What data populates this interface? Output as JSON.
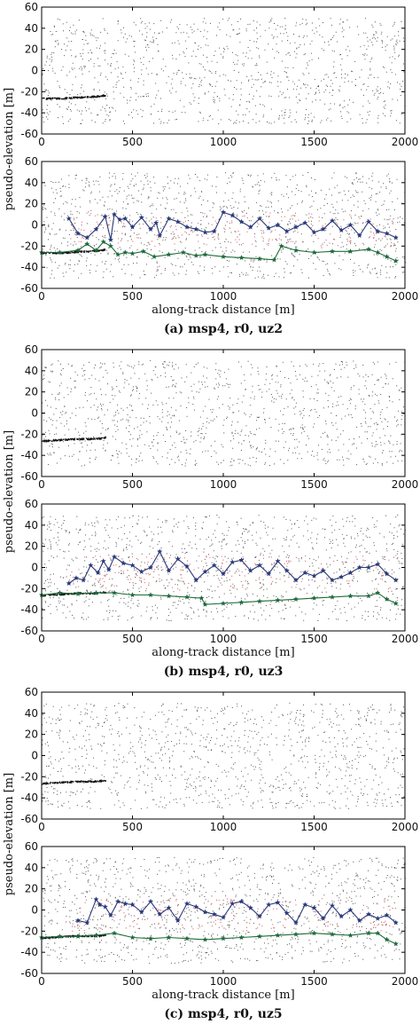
{
  "chart_data": [
    {
      "type": "scatter",
      "caption": "(a) msp4, r0, uz2",
      "ylabel": "pseudo-elevation [m]",
      "xlabel": "along-track distance [m]",
      "xlim": [
        0,
        2000
      ],
      "ylim": [
        -60,
        60
      ],
      "xticks": [
        "0",
        "500",
        "1000",
        "1500",
        "2000"
      ],
      "yticks": [
        "60",
        "40",
        "20",
        "0",
        "-20",
        "-40",
        "-60"
      ],
      "noise_band": [
        -50,
        50
      ],
      "top_panel": {
        "surface": {
          "x": [
            0,
            100,
            200,
            300,
            350
          ],
          "y": [
            -26,
            -26,
            -25,
            -24,
            -23
          ]
        }
      },
      "bottom_panel": {
        "series": [
          {
            "color": "#2a3a7a",
            "marker": "star",
            "x": [
              150,
              200,
              250,
              300,
              350,
              380,
              400,
              430,
              460,
              500,
              550,
              600,
              630,
              650,
              700,
              750,
              800,
              850,
              900,
              950,
              1000,
              1050,
              1100,
              1150,
              1200,
              1250,
              1300,
              1350,
              1400,
              1450,
              1500,
              1550,
              1600,
              1650,
              1700,
              1750,
              1800,
              1850,
              1900,
              1950
            ],
            "y": [
              6,
              -8,
              -12,
              -4,
              8,
              -14,
              10,
              5,
              6,
              -2,
              7,
              -4,
              2,
              -10,
              6,
              3,
              -2,
              -4,
              -7,
              -6,
              12,
              9,
              3,
              -2,
              6,
              -3,
              0,
              -6,
              -2,
              2,
              -7,
              -4,
              4,
              -5,
              0,
              -10,
              3,
              -6,
              -8,
              -12
            ]
          },
          {
            "color": "#1e6b3c",
            "marker": "star",
            "x": [
              0,
              100,
              200,
              250,
              300,
              340,
              380,
              420,
              460,
              500,
              560,
              620,
              700,
              780,
              850,
              900,
              1000,
              1100,
              1200,
              1280,
              1320,
              1400,
              1500,
              1600,
              1700,
              1800,
              1850,
              1900,
              1950
            ],
            "y": [
              -26,
              -26,
              -24,
              -18,
              -24,
              -16,
              -20,
              -28,
              -26,
              -27,
              -25,
              -30,
              -28,
              -26,
              -29,
              -28,
              -30,
              -31,
              -32,
              -33,
              -20,
              -24,
              -26,
              -25,
              -25,
              -23,
              -26,
              -30,
              -34
            ]
          }
        ]
      }
    },
    {
      "type": "scatter",
      "caption": "(b) msp4, r0, uz3",
      "ylabel": "pseudo-elevation [m]",
      "xlabel": "along-track distance [m]",
      "xlim": [
        0,
        2000
      ],
      "ylim": [
        -60,
        60
      ],
      "xticks": [
        "0",
        "500",
        "1000",
        "1500",
        "2000"
      ],
      "yticks": [
        "60",
        "40",
        "20",
        "0",
        "-20",
        "-40",
        "-60"
      ],
      "noise_band": [
        -50,
        50
      ],
      "top_panel": {
        "surface": {
          "x": [
            0,
            100,
            200,
            300,
            350
          ],
          "y": [
            -26,
            -25,
            -24,
            -24,
            -23
          ]
        }
      },
      "bottom_panel": {
        "series": [
          {
            "color": "#2a3a7a",
            "marker": "star",
            "x": [
              150,
              190,
              230,
              270,
              310,
              340,
              370,
              400,
              450,
              500,
              550,
              600,
              650,
              700,
              750,
              800,
              850,
              900,
              950,
              1000,
              1050,
              1100,
              1150,
              1200,
              1250,
              1300,
              1350,
              1400,
              1450,
              1500,
              1550,
              1600,
              1650,
              1700,
              1750,
              1800,
              1850,
              1900,
              1950
            ],
            "y": [
              -15,
              -10,
              -12,
              2,
              -5,
              6,
              -2,
              10,
              4,
              2,
              -4,
              0,
              15,
              -3,
              8,
              1,
              -12,
              -4,
              2,
              -6,
              5,
              7,
              -3,
              2,
              -6,
              6,
              -3,
              -12,
              -5,
              -8,
              -3,
              -12,
              -9,
              -5,
              0,
              0,
              3,
              -6,
              -12
            ]
          },
          {
            "color": "#1e6b3c",
            "marker": "star",
            "x": [
              0,
              100,
              200,
              300,
              400,
              500,
              600,
              700,
              800,
              880,
              900,
              1000,
              1100,
              1200,
              1300,
              1400,
              1500,
              1600,
              1700,
              1800,
              1850,
              1900,
              1950
            ],
            "y": [
              -26,
              -24,
              -25,
              -24,
              -24,
              -26,
              -26,
              -27,
              -28,
              -29,
              -35,
              -34,
              -33,
              -32,
              -31,
              -30,
              -29,
              -28,
              -27,
              -27,
              -24,
              -30,
              -34
            ]
          }
        ]
      }
    },
    {
      "type": "scatter",
      "caption": "(c) msp4, r0, uz5",
      "ylabel": "pseudo-elevation [m]",
      "xlabel": "along-track distance [m]",
      "xlim": [
        0,
        2000
      ],
      "ylim": [
        -60,
        60
      ],
      "xticks": [
        "0",
        "500",
        "1000",
        "1500",
        "2000"
      ],
      "yticks": [
        "60",
        "40",
        "20",
        "0",
        "-20",
        "-40",
        "-60"
      ],
      "noise_band": [
        -50,
        50
      ],
      "top_panel": {
        "surface": {
          "x": [
            0,
            100,
            200,
            300,
            350
          ],
          "y": [
            -26,
            -25,
            -24,
            -24,
            -23
          ]
        }
      },
      "bottom_panel": {
        "series": [
          {
            "color": "#2a3a7a",
            "marker": "star",
            "x": [
              200,
              250,
              300,
              320,
              350,
              380,
              420,
              460,
              500,
              550,
              600,
              650,
              700,
              750,
              800,
              850,
              900,
              950,
              1000,
              1050,
              1100,
              1150,
              1200,
              1250,
              1300,
              1350,
              1400,
              1450,
              1500,
              1550,
              1600,
              1650,
              1700,
              1750,
              1800,
              1850,
              1900,
              1950
            ],
            "y": [
              -10,
              -12,
              10,
              5,
              3,
              -5,
              8,
              6,
              5,
              -2,
              8,
              -4,
              2,
              -10,
              6,
              3,
              -2,
              -4,
              -7,
              6,
              8,
              2,
              -6,
              5,
              7,
              -3,
              -12,
              5,
              2,
              -8,
              4,
              -6,
              0,
              -10,
              -4,
              -8,
              -5,
              -12
            ]
          },
          {
            "color": "#1e6b3c",
            "marker": "star",
            "x": [
              0,
              100,
              200,
              300,
              400,
              500,
              600,
              700,
              800,
              900,
              1000,
              1100,
              1200,
              1300,
              1400,
              1500,
              1600,
              1700,
              1800,
              1850,
              1900,
              1950
            ],
            "y": [
              -26,
              -25,
              -25,
              -24,
              -22,
              -26,
              -27,
              -26,
              -27,
              -28,
              -27,
              -26,
              -25,
              -24,
              -23,
              -22,
              -23,
              -24,
              -22,
              -22,
              -28,
              -32
            ]
          }
        ]
      }
    }
  ]
}
